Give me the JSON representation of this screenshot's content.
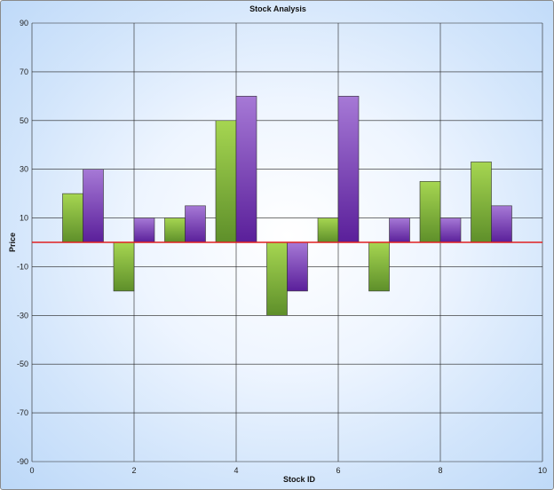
{
  "chart_data": {
    "type": "bar",
    "title": "Stock Analysis",
    "xlabel": "Stock ID",
    "ylabel": "Price",
    "xlim": [
      0,
      10
    ],
    "ylim": [
      -90,
      90
    ],
    "x_ticks": [
      "0",
      "2",
      "4",
      "6",
      "8",
      "10"
    ],
    "y_ticks": [
      "90",
      "70",
      "50",
      "30",
      "10",
      "-10",
      "-30",
      "-50",
      "-70",
      "-90"
    ],
    "grid": true,
    "baseline": 0,
    "categories": [
      1,
      2,
      3,
      4,
      5,
      6,
      7,
      8,
      9
    ],
    "series": [
      {
        "color": "#7cb82f",
        "values": [
          20,
          -20,
          10,
          50,
          -30,
          10,
          -20,
          25,
          33
        ]
      },
      {
        "color": "#7a3fb0",
        "values": [
          30,
          10,
          15,
          60,
          -20,
          60,
          10,
          10,
          15
        ]
      }
    ],
    "baseline_color": "#e02020"
  }
}
